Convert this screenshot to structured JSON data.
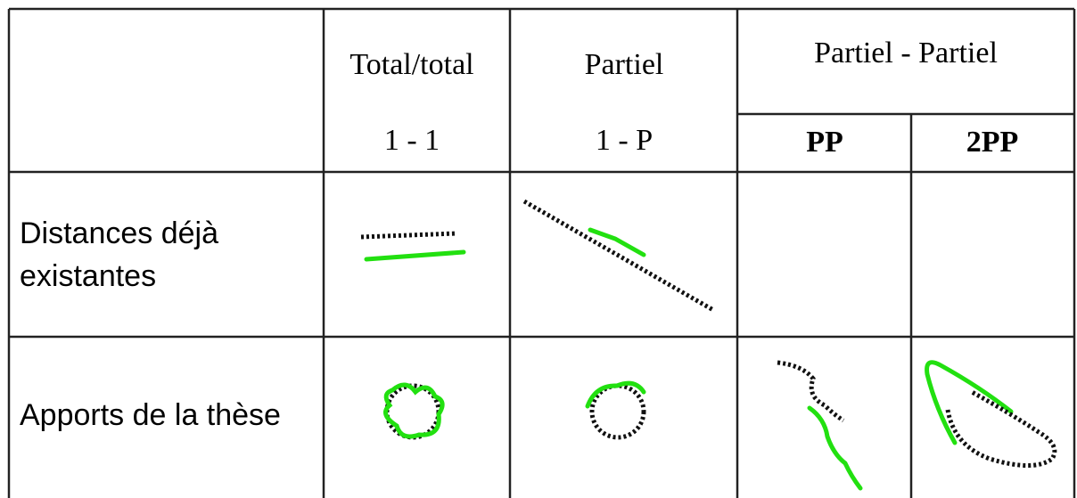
{
  "table": {
    "header": {
      "columns": [
        {
          "title": "Total/total",
          "subtitle": "1 - 1"
        },
        {
          "title": "Partiel",
          "subtitle": "1 - P"
        },
        {
          "title": "Partiel - Partiel",
          "subcolumns": [
            "PP",
            "2PP"
          ]
        }
      ]
    },
    "rows": [
      {
        "label": [
          "Distances déjà",
          "existantes"
        ]
      },
      {
        "label": [
          "Apports de la thèse"
        ]
      }
    ]
  }
}
